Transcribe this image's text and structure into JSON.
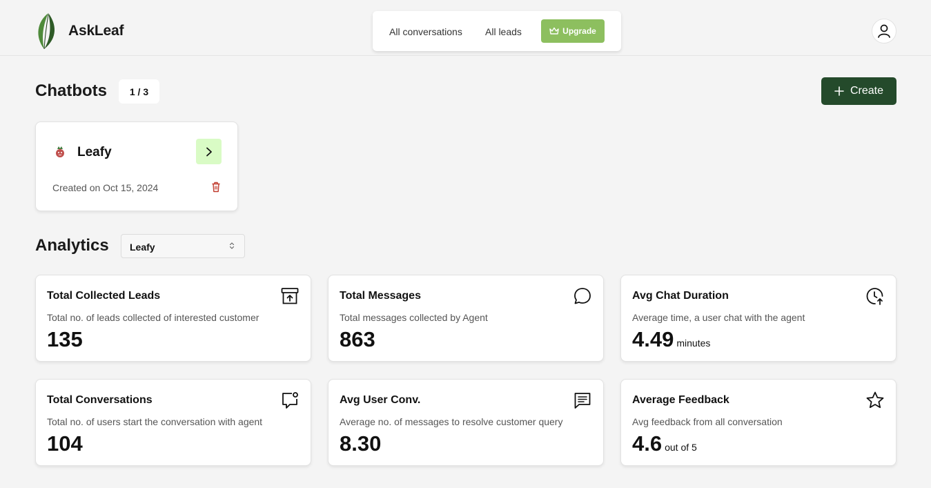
{
  "app": {
    "brand": "AskLeaf"
  },
  "nav": {
    "all_conversations": "All conversations",
    "all_leads": "All leads",
    "upgrade": "Upgrade"
  },
  "chatbots": {
    "title": "Chatbots",
    "count": "1 / 3",
    "create_label": "Create",
    "items": [
      {
        "name": "Leafy",
        "created": "Created on Oct 15, 2024"
      }
    ]
  },
  "analytics": {
    "title": "Analytics",
    "selected_bot": "Leafy",
    "cards": [
      {
        "title": "Total Collected Leads",
        "desc": "Total no. of leads collected of interested customer",
        "value": "135",
        "unit": "",
        "icon": "archive-upload-icon"
      },
      {
        "title": "Total Messages",
        "desc": "Total messages collected by Agent",
        "value": "863",
        "unit": "",
        "icon": "message-bubble-icon"
      },
      {
        "title": "Avg Chat Duration",
        "desc": "Average time, a user chat with the agent",
        "value": "4.49",
        "unit": "minutes",
        "icon": "clock-up-icon"
      },
      {
        "title": "Total Conversations",
        "desc": "Total no. of users start the conversation with agent",
        "value": "104",
        "unit": "",
        "icon": "message-dot-icon"
      },
      {
        "title": "Avg User Conv.",
        "desc": "Average no. of messages to resolve customer query",
        "value": "8.30",
        "unit": "",
        "icon": "message-lines-icon"
      },
      {
        "title": "Average Feedback",
        "desc": "Avg feedback from all conversation",
        "value": "4.6",
        "unit": "out of 5",
        "icon": "star-icon"
      }
    ]
  },
  "colors": {
    "upgrade": "#8dbf5f",
    "create": "#244a2b",
    "open_button": "#d9fbc5",
    "delete": "#c0392b"
  }
}
